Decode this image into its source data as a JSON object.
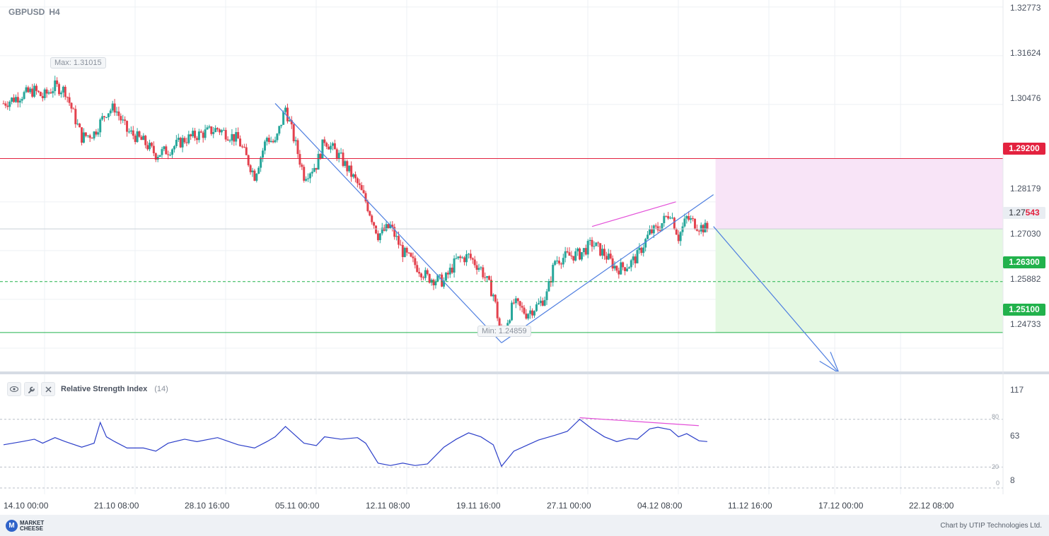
{
  "header": {
    "symbol": "GBPUSD",
    "timeframe": "H4"
  },
  "price_axis": {
    "labels": [
      "1.32773",
      "1.31624",
      "1.30476",
      "1.28179",
      "1.27030",
      "1.25882",
      "1.24733"
    ]
  },
  "levels": {
    "stop_loss": {
      "label": "1.29200",
      "color": "#e3223f"
    },
    "current": {
      "prefix": "1.27",
      "highlight": "543"
    },
    "take_profit_1": {
      "label": "1.26300",
      "color": "#22b24c"
    },
    "take_profit_2": {
      "label": "1.25100",
      "color": "#22b24c"
    }
  },
  "annotations": {
    "max": "Max: 1.31015",
    "min": "Min: 1.24859"
  },
  "time_axis": {
    "labels": [
      "14.10 00:00",
      "21.10 08:00",
      "28.10 16:00",
      "05.11 00:00",
      "12.11 08:00",
      "19.11 16:00",
      "27.11 00:00",
      "04.12 08:00",
      "11.12 16:00",
      "17.12 00:00",
      "22.12 08:00"
    ]
  },
  "rsi": {
    "title": "Relative Strength Index",
    "param": "(14)",
    "axis_labels": [
      "117",
      "63",
      "8"
    ],
    "levels": [
      "80",
      "20",
      "0"
    ],
    "icons": [
      "eye-icon",
      "wrench-icon",
      "close-icon"
    ]
  },
  "footer": {
    "brand_line1": "MARKET",
    "brand_line2": "CHEESE",
    "credit": "Chart by UTIP Technologies Ltd."
  },
  "colors": {
    "bull": "#26a69a",
    "bear": "#e3414d",
    "rsi_line": "#2c3fc9",
    "trend": "#4f7fe0",
    "divergence": "#e34fd8",
    "sell_zone": "#f8e4f7",
    "buy_zone": "#e4f8e2"
  },
  "chart_data": [
    {
      "type": "candlestick",
      "title": "GBPUSD H4",
      "ylim": [
        1.2415,
        1.3277
      ],
      "x_ticks": [
        "14.10 00:00",
        "21.10 08:00",
        "28.10 16:00",
        "05.11 00:00",
        "12.11 08:00",
        "19.11 16:00",
        "27.11 00:00",
        "04.12 08:00",
        "11.12 16:00",
        "17.12 00:00",
        "22.12 08:00"
      ],
      "close_path": [
        [
          "14.10 00:00",
          1.305
        ],
        [
          "15.10 12:00",
          1.307
        ],
        [
          "16.10 12:00",
          1.308
        ],
        [
          "17.10 04:00",
          1.3065
        ],
        [
          "18.10 04:00",
          1.309
        ],
        [
          "19.10 00:00",
          1.308
        ],
        [
          "20.10 08:00",
          1.297
        ],
        [
          "21.10 08:00",
          1.298
        ],
        [
          "22.10 08:00",
          1.303
        ],
        [
          "23.10 00:00",
          1.304
        ],
        [
          "24.10 00:00",
          1.2985
        ],
        [
          "25.10 08:00",
          1.296
        ],
        [
          "26.10 08:00",
          1.293
        ],
        [
          "27.10 08:00",
          1.294
        ],
        [
          "28.10 16:00",
          1.2965
        ],
        [
          "29.10 16:00",
          1.2975
        ],
        [
          "31.10 08:00",
          1.299
        ],
        [
          "02.11 00:00",
          1.2965
        ],
        [
          "03.11 08:00",
          1.288
        ],
        [
          "04.11 08:00",
          1.297
        ],
        [
          "05.11 00:00",
          1.2955
        ],
        [
          "05.11 20:00",
          1.304
        ],
        [
          "07.11 08:00",
          1.288
        ],
        [
          "08.11 08:00",
          1.2905
        ],
        [
          "09.11 00:00",
          1.2965
        ],
        [
          "10.11 08:00",
          1.292
        ],
        [
          "11.11 16:00",
          1.286
        ],
        [
          "12.11 08:00",
          1.282
        ],
        [
          "13.11 08:00",
          1.274
        ],
        [
          "14.11 08:00",
          1.276
        ],
        [
          "15.11 08:00",
          1.27
        ],
        [
          "16.11 08:00",
          1.267
        ],
        [
          "17.11 08:00",
          1.264
        ],
        [
          "18.11 16:00",
          1.263
        ],
        [
          "19.11 16:00",
          1.268
        ],
        [
          "20.11 16:00",
          1.269
        ],
        [
          "21.11 16:00",
          1.266
        ],
        [
          "22.11 16:00",
          1.26
        ],
        [
          "23.11 08:00",
          1.25
        ],
        [
          "24.11 08:00",
          1.258
        ],
        [
          "25.11 08:00",
          1.2555
        ],
        [
          "26.11 08:00",
          1.2575
        ],
        [
          "27.11 00:00",
          1.26
        ],
        [
          "27.11 16:00",
          1.268
        ],
        [
          "28.11 16:00",
          1.269
        ],
        [
          "29.11 16:00",
          1.2695
        ],
        [
          "30.11 16:00",
          1.272
        ],
        [
          "01.12 16:00",
          1.2695
        ],
        [
          "02.12 16:00",
          1.266
        ],
        [
          "03.12 16:00",
          1.267
        ],
        [
          "04.12 08:00",
          1.269
        ],
        [
          "05.12 08:00",
          1.2745
        ],
        [
          "06.12 00:00",
          1.2755
        ],
        [
          "07.12 00:00",
          1.2795
        ],
        [
          "07.12 16:00",
          1.2735
        ],
        [
          "08.12 08:00",
          1.278
        ],
        [
          "09.12 08:00",
          1.276
        ],
        [
          "10.12 00:00",
          1.2754
        ]
      ],
      "annotations": {
        "max": 1.31015,
        "min": 1.24859
      },
      "horizontal_levels": [
        {
          "price": 1.292,
          "style": "solid",
          "color": "red"
        },
        {
          "price": 1.263,
          "style": "dashed",
          "color": "green"
        },
        {
          "price": 1.251,
          "style": "solid",
          "color": "green"
        }
      ],
      "current_price": 1.27543,
      "trend_lines": [
        {
          "from": [
            "05.11 00:00",
            1.305
          ],
          "to": [
            "23.11 08:00",
            1.24859
          ]
        },
        {
          "from": [
            "23.11 08:00",
            1.24859
          ],
          "to": [
            "10.12 12:00",
            1.2835
          ]
        },
        {
          "from": [
            "10.12 12:00",
            1.276
          ],
          "to": [
            "20.12 16:00",
            1.2415
          ],
          "arrow": true
        }
      ],
      "zones": [
        {
          "type": "sell",
          "from_price": 1.27543,
          "to_price": 1.292,
          "start": "10.12 16:00"
        },
        {
          "type": "buy",
          "from_price": 1.251,
          "to_price": 1.27543,
          "start": "10.12 16:00"
        }
      ]
    },
    {
      "type": "line",
      "title": "Relative Strength Index (14)",
      "ylim": [
        0,
        117
      ],
      "levels": [
        20,
        80
      ],
      "series": [
        {
          "name": "Relative Strength Index",
          "points": [
            [
              "14.10 00:00",
              48
            ],
            [
              "15.10 12:00",
              52
            ],
            [
              "16.10 12:00",
              55
            ],
            [
              "17.10 04:00",
              50
            ],
            [
              "18.10 04:00",
              57
            ],
            [
              "19.10 00:00",
              52
            ],
            [
              "20.10 08:00",
              45
            ],
            [
              "21.10 08:00",
              50
            ],
            [
              "21.10 20:00",
              76
            ],
            [
              "22.10 08:00",
              58
            ],
            [
              "23.10 00:00",
              52
            ],
            [
              "24.10 00:00",
              44
            ],
            [
              "25.10 08:00",
              44
            ],
            [
              "26.10 08:00",
              40
            ],
            [
              "27.10 08:00",
              50
            ],
            [
              "28.10 16:00",
              55
            ],
            [
              "29.10 16:00",
              52
            ],
            [
              "31.10 08:00",
              57
            ],
            [
              "02.11 00:00",
              48
            ],
            [
              "03.11 08:00",
              44
            ],
            [
              "04.11 08:00",
              52
            ],
            [
              "05.11 00:00",
              58
            ],
            [
              "05.11 20:00",
              71
            ],
            [
              "07.11 08:00",
              50
            ],
            [
              "08.11 08:00",
              47
            ],
            [
              "09.11 00:00",
              58
            ],
            [
              "10.11 08:00",
              55
            ],
            [
              "11.11 16:00",
              57
            ],
            [
              "12.11 08:00",
              50
            ],
            [
              "13.11 08:00",
              25
            ],
            [
              "14.11 08:00",
              22
            ],
            [
              "15.11 08:00",
              25
            ],
            [
              "16.11 08:00",
              22
            ],
            [
              "17.11 08:00",
              24
            ],
            [
              "18.11 16:00",
              45
            ],
            [
              "19.11 16:00",
              55
            ],
            [
              "20.11 16:00",
              63
            ],
            [
              "21.11 16:00",
              58
            ],
            [
              "22.11 16:00",
              48
            ],
            [
              "23.11 08:00",
              21
            ],
            [
              "24.11 08:00",
              40
            ],
            [
              "25.11 08:00",
              47
            ],
            [
              "26.11 08:00",
              54
            ],
            [
              "27.11 00:00",
              57
            ],
            [
              "27.11 16:00",
              60
            ],
            [
              "28.11 16:00",
              65
            ],
            [
              "29.11 16:00",
              80
            ],
            [
              "30.11 16:00",
              68
            ],
            [
              "01.12 16:00",
              58
            ],
            [
              "02.12 16:00",
              52
            ],
            [
              "03.12 16:00",
              56
            ],
            [
              "04.12 08:00",
              55
            ],
            [
              "05.12 08:00",
              68
            ],
            [
              "06.12 00:00",
              70
            ],
            [
              "07.12 00:00",
              67
            ],
            [
              "07.12 16:00",
              58
            ],
            [
              "08.12 08:00",
              62
            ],
            [
              "09.12 08:00",
              53
            ],
            [
              "10.12 00:00",
              52
            ]
          ]
        }
      ],
      "divergence_line": {
        "from": [
          "29.11 16:00",
          82
        ],
        "to": [
          "10.12 00:00",
          72
        ]
      }
    }
  ]
}
